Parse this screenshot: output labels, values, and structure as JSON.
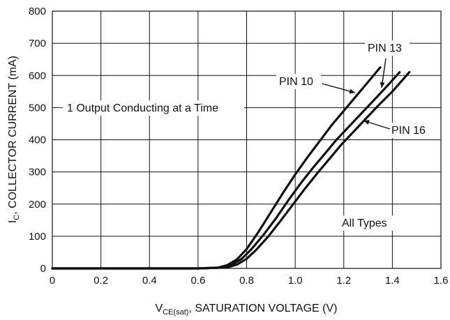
{
  "chart_data": {
    "type": "line",
    "xlabel_main": "V",
    "xlabel_sub": "CE(sat)",
    "xlabel_rest": ", SATURATION VOLTAGE (V)",
    "ylabel_main": "I",
    "ylabel_sub": "C",
    "ylabel_rest": ", COLLECTOR CURRENT (mA)",
    "xlim": [
      0,
      1.6
    ],
    "ylim": [
      0,
      800
    ],
    "xticks": [
      0,
      0.2,
      0.4,
      0.6,
      0.8,
      1.0,
      1.2,
      1.4,
      1.6
    ],
    "xtick_labels": [
      "0",
      "0.2",
      "0.4",
      "0.6",
      "0.8",
      "1.0",
      "1.2",
      "1.4",
      "1.6"
    ],
    "yticks": [
      0,
      100,
      200,
      300,
      400,
      500,
      600,
      700,
      800
    ],
    "ytick_labels": [
      "0",
      "100",
      "200",
      "300",
      "400",
      "500",
      "600",
      "700",
      "800"
    ],
    "grid": true,
    "annotations": {
      "conducting": "1 Output Conducting at a Time",
      "all_types": "All Types"
    },
    "series": [
      {
        "name": "PIN 10",
        "x": [
          0,
          0.6,
          0.68,
          0.72,
          0.76,
          0.8,
          0.85,
          0.9,
          0.95,
          1.0,
          1.05,
          1.1,
          1.15,
          1.2,
          1.25,
          1.3,
          1.35
        ],
        "y": [
          0,
          0,
          2,
          10,
          28,
          60,
          115,
          175,
          235,
          292,
          345,
          395,
          445,
          490,
          535,
          580,
          625
        ]
      },
      {
        "name": "PIN 13",
        "x": [
          0,
          0.6,
          0.7,
          0.74,
          0.78,
          0.82,
          0.87,
          0.92,
          0.97,
          1.02,
          1.07,
          1.12,
          1.17,
          1.22,
          1.27,
          1.32,
          1.37,
          1.43
        ],
        "y": [
          0,
          0,
          3,
          12,
          30,
          60,
          105,
          155,
          210,
          262,
          310,
          355,
          400,
          440,
          480,
          520,
          560,
          610
        ]
      },
      {
        "name": "PIN 16",
        "x": [
          0,
          0.6,
          0.72,
          0.76,
          0.8,
          0.84,
          0.89,
          0.94,
          0.99,
          1.04,
          1.09,
          1.14,
          1.19,
          1.24,
          1.29,
          1.34,
          1.4,
          1.47
        ],
        "y": [
          0,
          0,
          3,
          12,
          30,
          58,
          100,
          148,
          198,
          248,
          295,
          340,
          385,
          425,
          465,
          505,
          550,
          610
        ]
      }
    ],
    "series_labels": [
      {
        "text": "PIN 13",
        "series": "PIN 13"
      },
      {
        "text": "PIN 10",
        "series": "PIN 10"
      },
      {
        "text": "PIN 16",
        "series": "PIN 16"
      }
    ]
  }
}
